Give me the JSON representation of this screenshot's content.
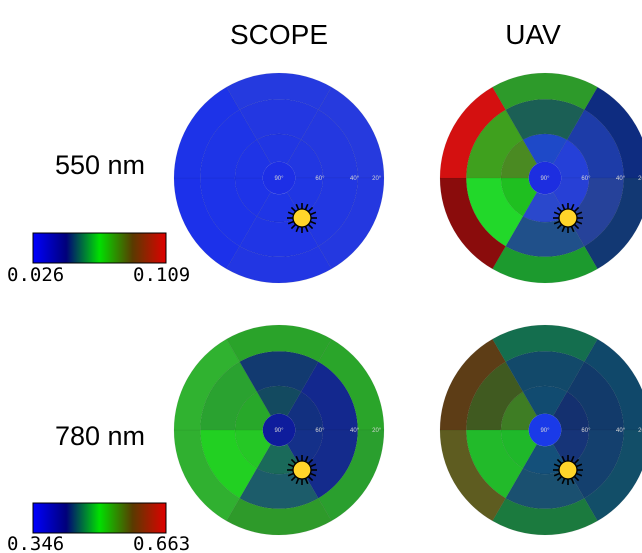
{
  "columns": [
    "SCOPE",
    "UAV"
  ],
  "rows": [
    {
      "label": "550 nm",
      "colorbar": {
        "min_label": "0.026",
        "max_label": "0.109"
      }
    },
    {
      "label": "780 nm",
      "colorbar": {
        "min_label": "0.346",
        "max_label": "0.663"
      }
    }
  ],
  "ring_labels": [
    "90°",
    "60°",
    "40°",
    "20°"
  ],
  "colorbar_stops": [
    "#0000ff",
    "#00007a",
    "#00e000",
    "#5a3a00",
    "#e00000"
  ],
  "sun_icon": "sun-icon",
  "plots": [
    {
      "name": "scope-550",
      "center_fill": "#1d2fe6",
      "rings": [
        [
          "#2237e2",
          "#2036e4",
          "#1f35e6",
          "#1e33e8",
          "#1f34e6",
          "#2136e3"
        ],
        [
          "#2438e0",
          "#2237e2",
          "#2035e5",
          "#1d33e9",
          "#1e34e7",
          "#2337e1"
        ],
        [
          "#263ade",
          "#2438e0",
          "#2236e3",
          "#1c31ea",
          "#1d33e8",
          "#253adf"
        ]
      ]
    },
    {
      "name": "uav-550",
      "center_fill": "#1d2ee0",
      "rings": [
        [
          "#2540d8",
          "#2740d6",
          "#2a48cc",
          "#1fbf20",
          "#4a8a22",
          "#1e49c8"
        ],
        [
          "#1d3ca8",
          "#26429a",
          "#20508a",
          "#22d82a",
          "#3fa01e",
          "#1b5f55"
        ],
        [
          "#0e2c80",
          "#123873",
          "#1c9a2e",
          "#8a0c0c",
          "#d41010",
          "#2d9a2a"
        ]
      ]
    },
    {
      "name": "scope-780",
      "center_fill": "#0e1c9c",
      "rings": [
        [
          "#123080",
          "#143089",
          "#1a6a5a",
          "#25c825",
          "#28a82a",
          "#134a60"
        ],
        [
          "#13288e",
          "#142b8c",
          "#1c5c6a",
          "#22d022",
          "#2aa230",
          "#123a70"
        ],
        [
          "#2aa52a",
          "#2a9f2e",
          "#2e9a2a",
          "#30b030",
          "#30b230",
          "#2aa32a"
        ]
      ]
    },
    {
      "name": "uav-780",
      "center_fill": "#1a3ae8",
      "rings": [
        [
          "#14306f",
          "#163478",
          "#14507a",
          "#1fb82a",
          "#3e7d24",
          "#114b70"
        ],
        [
          "#123a6a",
          "#14406e",
          "#1a5070",
          "#22ba2a",
          "#405a20",
          "#12496a"
        ],
        [
          "#10486a",
          "#124e68",
          "#1b7a3e",
          "#5e5c20",
          "#5d3d16",
          "#146e4e"
        ]
      ]
    }
  ]
}
